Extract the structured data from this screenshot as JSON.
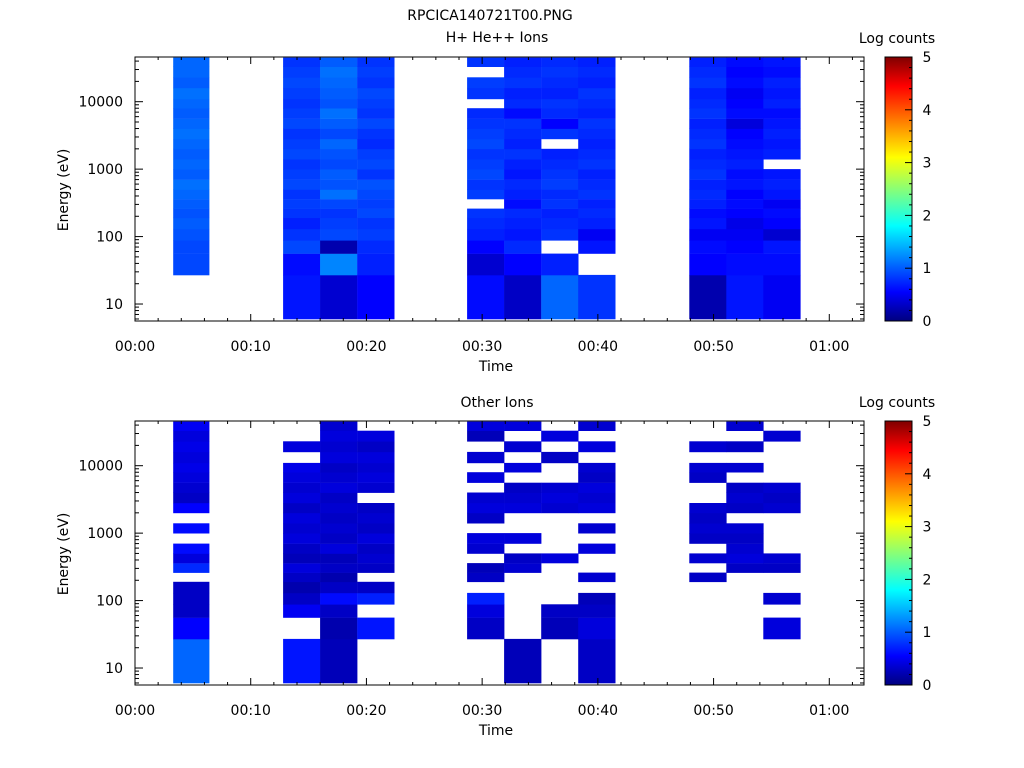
{
  "page_title": "RPCICA140721T00.PNG",
  "chart_data": [
    {
      "type": "heatmap",
      "title": "H+ He++ Ions",
      "xlabel": "Time",
      "ylabel": "Energy (eV)",
      "colorbar_label": "Log counts",
      "colorbar_ticks": [
        "0",
        "1",
        "2",
        "3",
        "4",
        "5"
      ],
      "colorbar_range": [
        0,
        5
      ],
      "y_scale": "log",
      "y_tick_labels": [
        "10",
        "100",
        "1000",
        "10000"
      ],
      "x_tick_labels": [
        "00:00",
        "00:10",
        "00:20",
        "00:30",
        "00:40",
        "00:50",
        "01:00"
      ],
      "x_range_min": [
        0,
        63
      ],
      "energy_edges_eV": [
        6,
        27,
        56,
        88,
        130,
        190,
        260,
        360,
        500,
        700,
        1000,
        1400,
        2000,
        2800,
        4000,
        5600,
        8000,
        11000,
        16000,
        23000,
        33000,
        45000
      ],
      "columns": [
        {
          "t": [
            3.3,
            6.4
          ],
          "values": [
            null,
            0.9,
            0.9,
            0.95,
            1.0,
            0.95,
            1.0,
            1.05,
            1.1,
            1.0,
            1.05,
            1.0,
            1.05,
            1.1,
            1.05,
            1.0,
            1.05,
            1.1,
            1.0,
            1.05,
            1.05
          ]
        },
        {
          "t": [
            12.8,
            16.0
          ],
          "values": [
            0.65,
            0.6,
            0.9,
            0.8,
            0.7,
            0.8,
            0.85,
            0.8,
            0.9,
            0.85,
            0.8,
            0.9,
            0.85,
            0.8,
            0.9,
            0.85,
            0.8,
            0.85,
            0.9,
            0.85,
            0.8
          ]
        },
        {
          "t": [
            16.0,
            19.2
          ],
          "values": [
            0.35,
            1.2,
            0.2,
            0.9,
            0.85,
            0.8,
            0.9,
            1.1,
            0.95,
            1.0,
            0.9,
            0.95,
            1.05,
            0.9,
            1.0,
            1.1,
            0.95,
            1.0,
            1.05,
            1.1,
            1.0
          ]
        },
        {
          "t": [
            19.2,
            22.4
          ],
          "values": [
            0.55,
            0.7,
            0.75,
            0.85,
            0.8,
            0.9,
            0.85,
            0.9,
            0.95,
            0.8,
            0.9,
            0.85,
            0.75,
            0.8,
            0.9,
            0.8,
            0.85,
            0.9,
            0.8,
            0.85,
            0.8
          ]
        },
        {
          "t": [
            28.7,
            31.9
          ],
          "values": [
            0.6,
            0.35,
            0.55,
            0.7,
            0.75,
            0.8,
            null,
            0.85,
            0.8,
            0.9,
            0.85,
            0.8,
            0.9,
            0.85,
            0.8,
            0.75,
            null,
            0.8,
            0.85,
            null,
            0.8
          ]
        },
        {
          "t": [
            31.9,
            35.1
          ],
          "values": [
            0.3,
            0.55,
            0.75,
            0.65,
            0.7,
            0.75,
            0.6,
            0.7,
            0.75,
            0.65,
            0.7,
            0.8,
            0.7,
            0.75,
            0.8,
            0.6,
            0.75,
            0.7,
            0.8,
            0.75,
            0.7
          ]
        },
        {
          "t": [
            35.1,
            38.3
          ],
          "values": [
            1.05,
            0.7,
            null,
            0.8,
            0.75,
            0.7,
            0.8,
            0.75,
            0.85,
            0.8,
            0.75,
            0.7,
            null,
            0.8,
            0.55,
            0.75,
            0.8,
            0.7,
            0.75,
            0.8,
            0.75
          ]
        },
        {
          "t": [
            38.3,
            41.5
          ],
          "values": [
            0.8,
            null,
            0.65,
            0.5,
            0.7,
            0.75,
            0.7,
            0.8,
            0.75,
            0.7,
            0.8,
            0.75,
            0.7,
            0.75,
            0.8,
            0.7,
            0.75,
            0.8,
            0.7,
            0.75,
            0.7
          ]
        },
        {
          "t": [
            47.9,
            51.1
          ],
          "values": [
            0.2,
            0.55,
            0.6,
            0.5,
            0.65,
            0.6,
            0.7,
            0.75,
            0.7,
            0.8,
            0.75,
            0.7,
            0.8,
            0.75,
            0.7,
            0.8,
            0.75,
            0.7,
            0.8,
            0.75,
            0.7
          ]
        },
        {
          "t": [
            51.1,
            54.3
          ],
          "values": [
            0.65,
            0.6,
            0.55,
            0.5,
            0.45,
            0.55,
            0.6,
            0.55,
            0.65,
            0.6,
            0.7,
            0.65,
            0.6,
            0.55,
            0.4,
            0.6,
            0.55,
            0.5,
            0.6,
            0.55,
            0.6
          ]
        },
        {
          "t": [
            54.3,
            57.5
          ],
          "values": [
            0.5,
            0.6,
            0.65,
            0.35,
            0.55,
            0.6,
            0.5,
            0.65,
            0.7,
            0.65,
            null,
            0.7,
            0.65,
            0.7,
            0.65,
            0.6,
            0.7,
            0.65,
            0.7,
            0.6,
            0.65
          ]
        }
      ]
    },
    {
      "type": "heatmap",
      "title": "Other Ions",
      "xlabel": "Time",
      "ylabel": "Energy (eV)",
      "colorbar_label": "Log counts",
      "colorbar_ticks": [
        "0",
        "1",
        "2",
        "3",
        "4",
        "5"
      ],
      "colorbar_range": [
        0,
        5
      ],
      "y_scale": "log",
      "y_tick_labels": [
        "10",
        "100",
        "1000",
        "10000"
      ],
      "x_tick_labels": [
        "00:00",
        "00:10",
        "00:20",
        "00:30",
        "00:40",
        "00:50",
        "01:00"
      ],
      "x_range_min": [
        0,
        63
      ],
      "energy_edges_eV": [
        6,
        27,
        56,
        88,
        130,
        190,
        260,
        360,
        500,
        700,
        1000,
        1400,
        2000,
        2800,
        4000,
        5600,
        8000,
        11000,
        16000,
        23000,
        33000,
        45000
      ],
      "columns": [
        {
          "t": [
            3.3,
            6.4
          ],
          "values": [
            1.05,
            0.55,
            0.3,
            0.3,
            0.3,
            null,
            0.75,
            0.4,
            0.6,
            null,
            0.6,
            null,
            0.55,
            0.3,
            0.35,
            0.4,
            0.45,
            0.4,
            0.45,
            0.4,
            0.5
          ]
        },
        {
          "t": [
            12.8,
            16.0
          ],
          "values": [
            0.65,
            null,
            0.5,
            0.3,
            0.2,
            0.3,
            0.4,
            0.25,
            0.3,
            0.4,
            0.35,
            0.4,
            0.3,
            0.4,
            0.35,
            0.4,
            0.45,
            null,
            0.4,
            null,
            null
          ]
        },
        {
          "t": [
            16.0,
            19.2
          ],
          "values": [
            0.25,
            0.2,
            0.3,
            0.6,
            0.3,
            0.2,
            0.3,
            0.25,
            0.4,
            0.3,
            0.35,
            0.3,
            0.35,
            0.3,
            0.4,
            0.35,
            0.3,
            0.4,
            0.35,
            0.4,
            0.35
          ]
        },
        {
          "t": [
            19.2,
            22.4
          ],
          "values": [
            null,
            0.65,
            null,
            0.7,
            0.3,
            null,
            0.3,
            0.35,
            0.3,
            0.4,
            0.3,
            0.35,
            0.3,
            null,
            0.35,
            0.4,
            0.35,
            0.4,
            0.3,
            0.4,
            null
          ]
        },
        {
          "t": [
            28.7,
            31.9
          ],
          "values": [
            null,
            0.3,
            0.4,
            0.7,
            null,
            0.3,
            0.25,
            null,
            0.35,
            0.4,
            null,
            0.3,
            0.4,
            0.35,
            null,
            0.4,
            null,
            0.35,
            null,
            0.25,
            0.4
          ]
        },
        {
          "t": [
            31.9,
            35.1
          ],
          "values": [
            0.25,
            null,
            null,
            null,
            null,
            null,
            0.35,
            0.3,
            null,
            0.4,
            null,
            null,
            0.4,
            0.35,
            0.3,
            null,
            0.4,
            null,
            0.35,
            null,
            0.4
          ]
        },
        {
          "t": [
            35.1,
            38.3
          ],
          "values": [
            null,
            0.25,
            0.3,
            null,
            null,
            null,
            null,
            0.4,
            null,
            null,
            null,
            null,
            0.35,
            0.4,
            0.35,
            null,
            null,
            0.3,
            null,
            0.4,
            null
          ]
        },
        {
          "t": [
            38.3,
            41.5
          ],
          "values": [
            0.3,
            0.4,
            0.3,
            0.25,
            null,
            0.35,
            null,
            null,
            0.4,
            null,
            0.35,
            null,
            0.4,
            0.35,
            0.4,
            0.3,
            0.35,
            null,
            0.4,
            null,
            0.35
          ]
        },
        {
          "t": [
            47.9,
            51.1
          ],
          "values": [
            null,
            null,
            null,
            null,
            null,
            0.3,
            null,
            0.35,
            null,
            0.3,
            0.35,
            0.3,
            0.35,
            null,
            null,
            0.3,
            0.35,
            null,
            0.35,
            null,
            null
          ]
        },
        {
          "t": [
            51.1,
            54.3
          ],
          "values": [
            null,
            null,
            null,
            null,
            null,
            null,
            0.3,
            0.4,
            0.35,
            0.3,
            0.35,
            null,
            0.3,
            0.35,
            0.3,
            null,
            0.35,
            null,
            0.3,
            null,
            0.35
          ]
        },
        {
          "t": [
            54.3,
            57.5
          ],
          "values": [
            null,
            0.4,
            null,
            0.35,
            null,
            null,
            0.3,
            0.35,
            null,
            null,
            null,
            null,
            0.35,
            0.3,
            0.35,
            null,
            null,
            null,
            null,
            0.35,
            null
          ]
        }
      ]
    }
  ]
}
